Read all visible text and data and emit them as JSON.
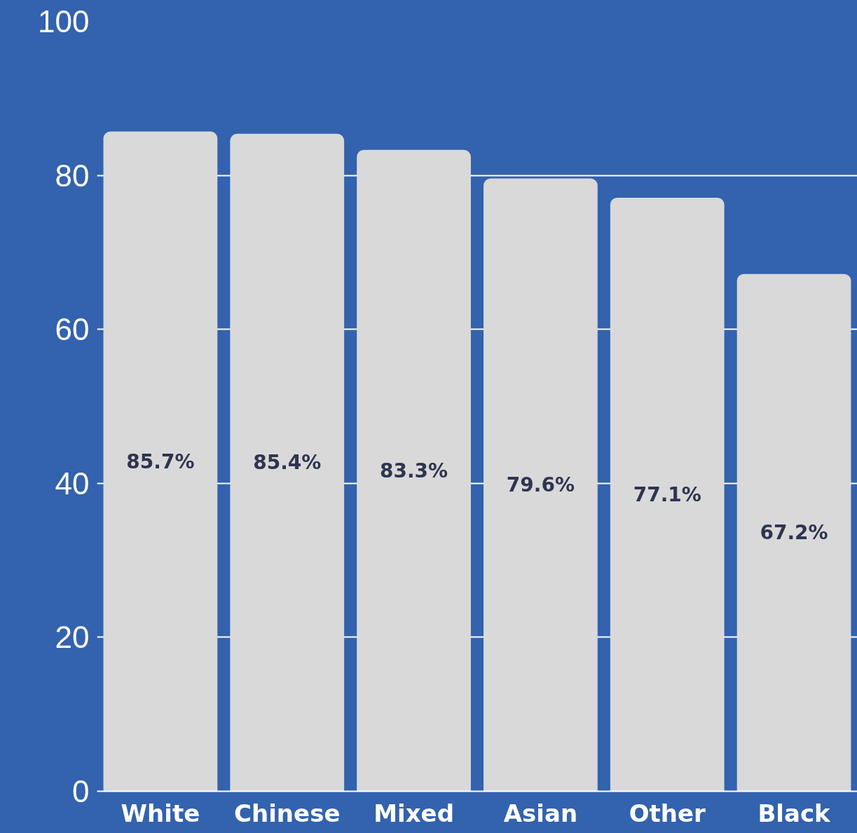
{
  "chart_data": {
    "type": "bar",
    "categories": [
      "White",
      "Chinese",
      "Mixed",
      "Asian",
      "Other",
      "Black"
    ],
    "values": [
      85.7,
      85.4,
      83.3,
      79.6,
      77.1,
      67.2
    ],
    "value_labels": [
      "85.7%",
      "85.4%",
      "83.3%",
      "79.6%",
      "77.1%",
      "67.2%"
    ],
    "color": "#d9d9d9",
    "ylim": [
      0,
      100
    ],
    "yticks": [
      0,
      20,
      40,
      60,
      80,
      100
    ],
    "grid": "y"
  }
}
